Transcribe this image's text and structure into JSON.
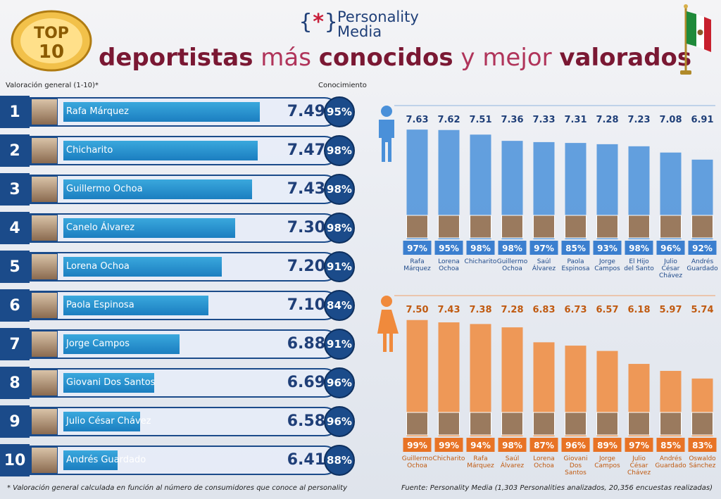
{
  "header": {
    "brand_mark": "{*}",
    "brand_line1": "Personality",
    "brand_line2": "Media",
    "title_part1": "deportistas",
    "title_part2": " más ",
    "title_part3": "conocidos",
    "title_part4": " y mejor ",
    "title_part5": "valorados",
    "badge_text": "TOP 10"
  },
  "left_header": "Valoración general (1-10)*",
  "right_header": "Conocimiento",
  "ranking": [
    {
      "rank": "1",
      "name": "Rafa Márquez",
      "score": "7.49",
      "known": "95%"
    },
    {
      "rank": "2",
      "name": "Chicharito",
      "score": "7.47",
      "known": "98%"
    },
    {
      "rank": "3",
      "name": "Guillermo Ochoa",
      "score": "7.43",
      "known": "98%"
    },
    {
      "rank": "4",
      "name": "Canelo Álvarez",
      "score": "7.30",
      "known": "98%"
    },
    {
      "rank": "5",
      "name": "Lorena Ochoa",
      "score": "7.20",
      "known": "91%"
    },
    {
      "rank": "6",
      "name": "Paola Espinosa",
      "score": "7.10",
      "known": "84%"
    },
    {
      "rank": "7",
      "name": "Jorge Campos",
      "score": "6.88",
      "known": "91%"
    },
    {
      "rank": "8",
      "name": "Giovani Dos Santos",
      "score": "6.69",
      "known": "96%"
    },
    {
      "rank": "9",
      "name": "Julio César Chávez",
      "score": "6.58",
      "known": "96%"
    },
    {
      "rank": "10",
      "name": "Andrés Guardado",
      "score": "6.41",
      "known": "88%"
    }
  ],
  "chart_data": [
    {
      "type": "bar",
      "title": "",
      "icon": "male-icon",
      "color": "#4a90d9",
      "categories": [
        [
          "Rafa",
          "Márquez"
        ],
        [
          "Lorena",
          "Ochoa"
        ],
        [
          "Chicharito"
        ],
        [
          "Guillermo",
          "Ochoa"
        ],
        [
          "Saúl",
          "Álvarez"
        ],
        [
          "Paola",
          "Espinosa"
        ],
        [
          "Jorge",
          "Campos"
        ],
        [
          "El Hijo",
          "del Santo"
        ],
        [
          "Julio",
          "César",
          "Chávez"
        ],
        [
          "Andrés",
          "Guardado"
        ]
      ],
      "values": [
        7.63,
        7.62,
        7.51,
        7.36,
        7.33,
        7.31,
        7.28,
        7.23,
        7.08,
        6.91
      ],
      "value_labels": [
        "7.63",
        "7.62",
        "7.51",
        "7.36",
        "7.33",
        "7.31",
        "7.28",
        "7.23",
        "7.08",
        "6.91"
      ],
      "known": [
        "97%",
        "95%",
        "98%",
        "98%",
        "97%",
        "85%",
        "93%",
        "98%",
        "96%",
        "92%"
      ]
    },
    {
      "type": "bar",
      "title": "",
      "icon": "female-icon",
      "color": "#f08a3c",
      "categories": [
        [
          "Guillermo",
          "Ochoa"
        ],
        [
          "Chicharito"
        ],
        [
          "Rafa",
          "Márquez"
        ],
        [
          "Saúl",
          "Álvarez"
        ],
        [
          "Lorena",
          "Ochoa"
        ],
        [
          "Giovani",
          "Dos",
          "Santos"
        ],
        [
          "Jorge",
          "Campos"
        ],
        [
          "Julio",
          "César",
          "Chávez"
        ],
        [
          "Andrés",
          "Guardado"
        ],
        [
          "Oswaldo",
          "Sánchez"
        ]
      ],
      "values": [
        7.5,
        7.43,
        7.38,
        7.28,
        6.83,
        6.73,
        6.57,
        6.18,
        5.97,
        5.74
      ],
      "value_labels": [
        "7.50",
        "7.43",
        "7.38",
        "7.28",
        "6.83",
        "6.73",
        "6.57",
        "6.18",
        "5.97",
        "5.74"
      ],
      "known": [
        "99%",
        "99%",
        "94%",
        "98%",
        "87%",
        "96%",
        "89%",
        "97%",
        "85%",
        "83%"
      ]
    }
  ],
  "footer_left": "* Valoración general calculada en función al número de consumidores que conoce al personality",
  "footer_right": "Fuente: Personality Media (1,303 Personalities analizados, 20,356 encuestas realizadas)"
}
